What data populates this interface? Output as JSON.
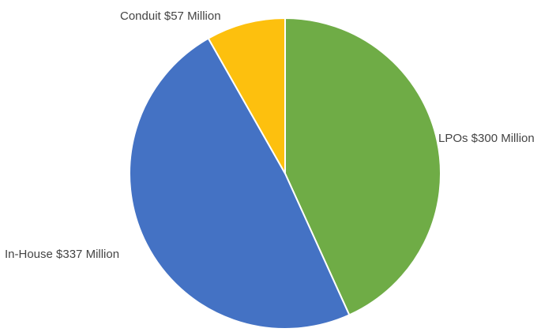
{
  "chart_data": {
    "type": "pie",
    "slices": [
      {
        "label": "LPOs $300 Million",
        "value": 300,
        "color": "#6fac46"
      },
      {
        "label": "In-House $337 Million",
        "value": 337,
        "color": "#4472c4"
      },
      {
        "label": "Conduit $57 Million",
        "value": 57,
        "color": "#fdc00e"
      }
    ],
    "legend": "none"
  }
}
